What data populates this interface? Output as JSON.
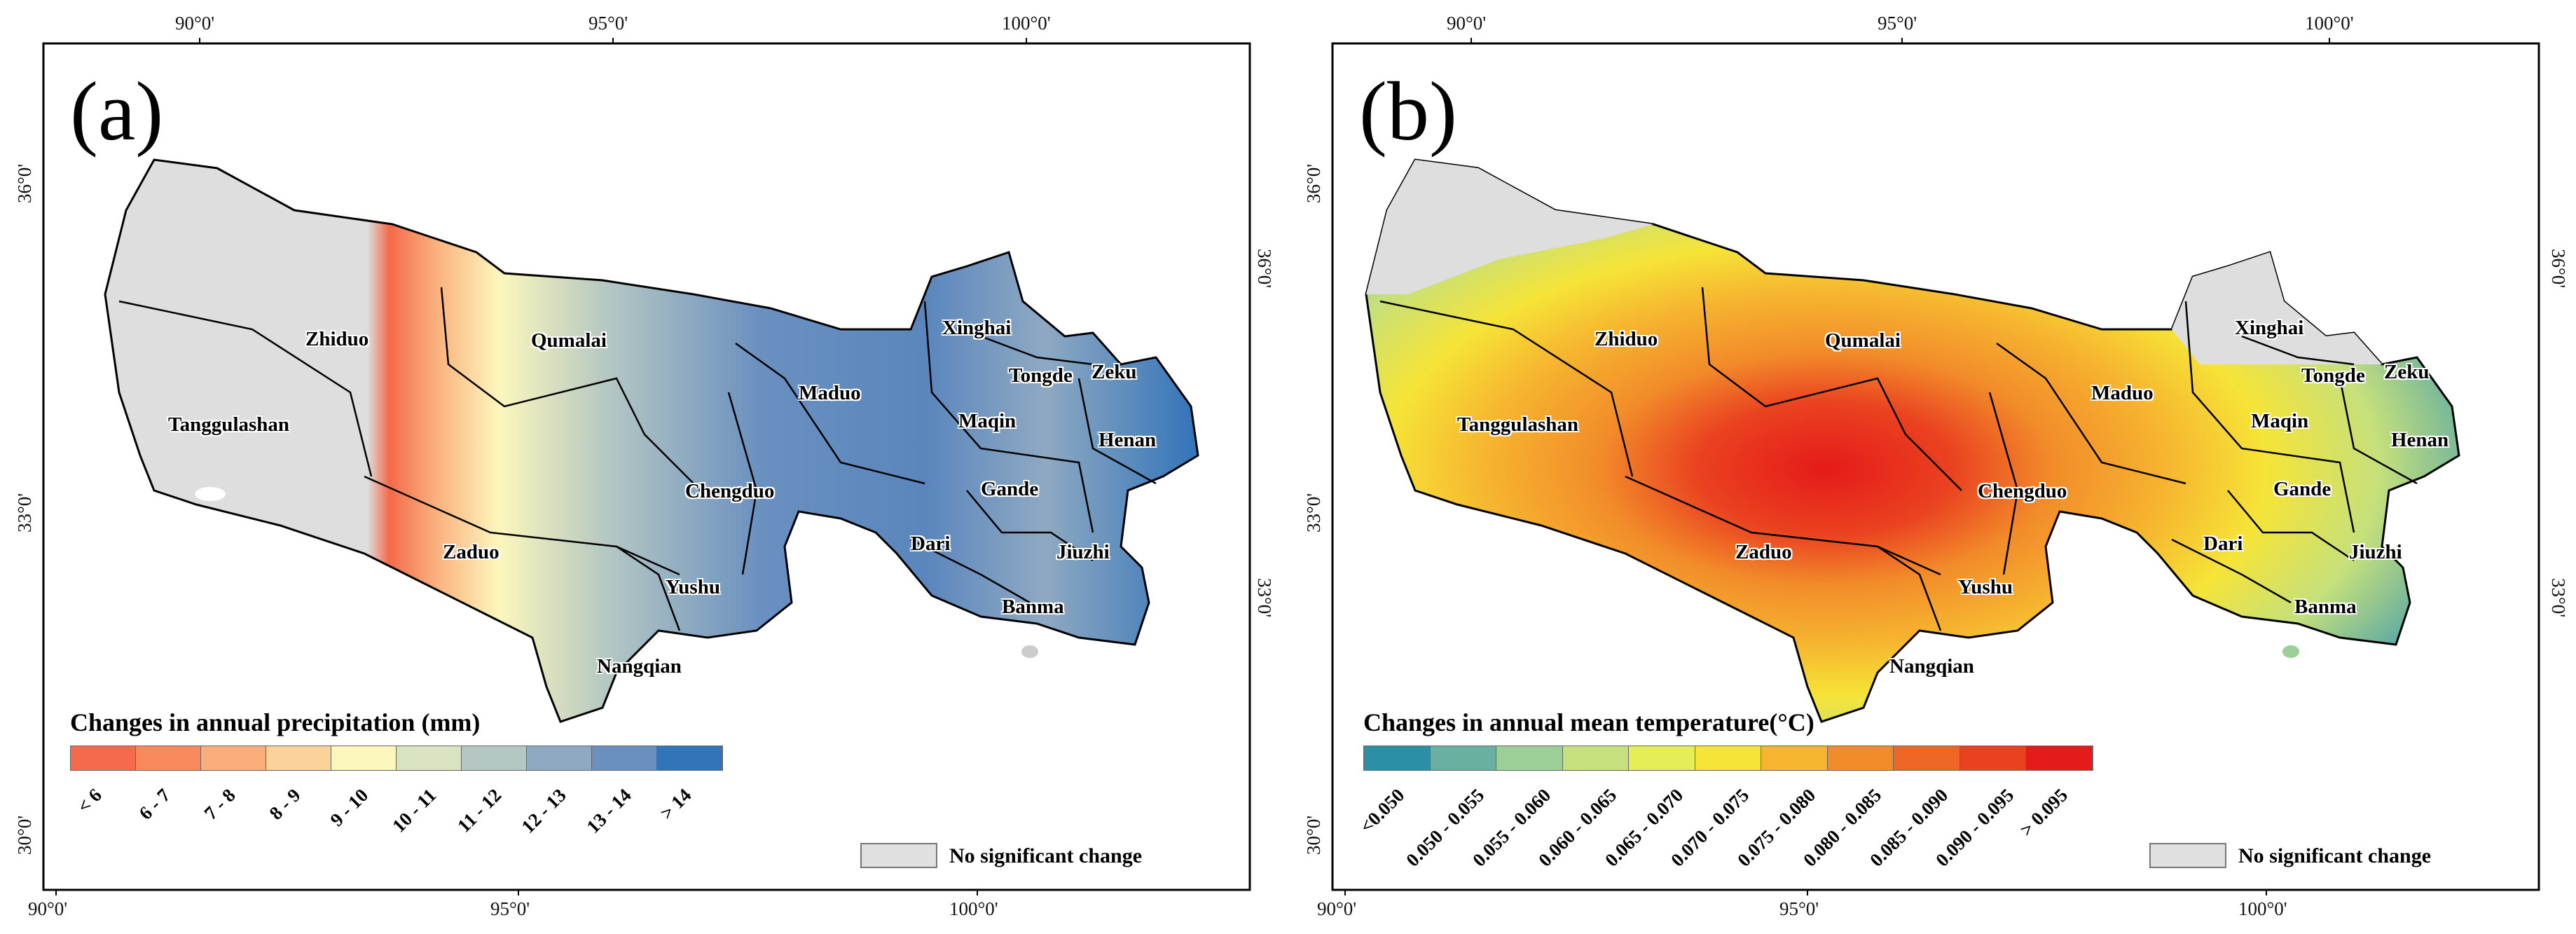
{
  "axes": {
    "lon_ticks": [
      "90°0'",
      "95°0'",
      "100°0'"
    ],
    "lat_ticks_left": [
      "36°0'",
      "33°0'",
      "30°0'"
    ],
    "lat_ticks_right": [
      "36°0'",
      "33°0'"
    ]
  },
  "counties": [
    "Zhiduo",
    "Qumalai",
    "Tanggulashan",
    "Maduo",
    "Xinghai",
    "Tongde",
    "Zeku",
    "Maqin",
    "Henan",
    "Chengduo",
    "Gande",
    "Zaduo",
    "Dari",
    "Jiuzhi",
    "Yushu",
    "Banma",
    "Nangqian"
  ],
  "no_change_label": "No significant change",
  "no_change_color": "#dedede",
  "panels": [
    {
      "letter": "(a)",
      "legend_title": "Changes in annual precipitation (mm)",
      "classes": [
        "< 6",
        "6 - 7",
        "7 - 8",
        "8 - 9",
        "9 - 10",
        "10 - 11",
        "11 - 12",
        "12 - 13",
        "13 - 14",
        "> 14"
      ],
      "colors": [
        "#f46a4a",
        "#f7895d",
        "#f9ad7a",
        "#fbd29a",
        "#fcf7bd",
        "#d9e3c2",
        "#b4c7c2",
        "#8fa9c2",
        "#6a90c0",
        "#3274b8"
      ]
    },
    {
      "letter": "(b)",
      "legend_title": "Changes in annual mean temperature(°C)",
      "classes": [
        "<0.050",
        "0.050 - 0.055",
        "0.055 - 0.060",
        "0.060 - 0.065",
        "0.065 - 0.070",
        "0.070 - 0.075",
        "0.075 - 0.080",
        "0.080 - 0.085",
        "0.085 - 0.090",
        "0.090 - 0.095",
        "> 0.095"
      ],
      "colors": [
        "#2b8fa6",
        "#6ab0a0",
        "#9ccf98",
        "#c5e07c",
        "#e5ee56",
        "#f6e437",
        "#f6b52f",
        "#f28c2a",
        "#ee6626",
        "#ea4220",
        "#e51a1a"
      ]
    }
  ]
}
